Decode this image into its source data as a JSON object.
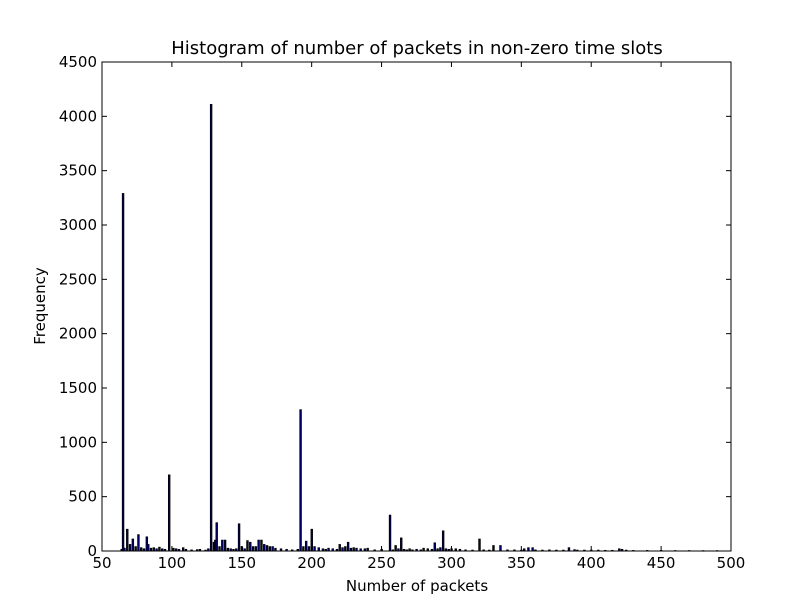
{
  "chart_data": {
    "type": "bar",
    "title": "Histogram of number of packets in non-zero time slots",
    "xlabel": "Number of packets",
    "ylabel": "Frequency",
    "xlim": [
      50,
      500
    ],
    "ylim": [
      0,
      4500
    ],
    "x_ticks": [
      "50",
      "100",
      "150",
      "200",
      "250",
      "300",
      "350",
      "400",
      "450",
      "500"
    ],
    "y_ticks": [
      "0",
      "500",
      "1000",
      "1500",
      "2000",
      "2500",
      "3000",
      "3500",
      "4000",
      "4500"
    ],
    "grid": false,
    "legend": "none",
    "bar_color": "#000080",
    "bar_edge_color": "#000000",
    "bin_width": 1,
    "x": [
      64,
      65,
      66,
      68,
      70,
      72,
      74,
      76,
      78,
      80,
      82,
      83,
      85,
      87,
      89,
      91,
      93,
      95,
      98,
      101,
      103,
      105,
      108,
      110,
      114,
      118,
      120,
      124,
      126,
      128,
      130,
      131,
      132,
      134,
      136,
      138,
      140,
      142,
      144,
      146,
      148,
      150,
      152,
      154,
      156,
      158,
      160,
      162,
      164,
      166,
      168,
      170,
      172,
      174,
      178,
      182,
      186,
      190,
      192,
      194,
      196,
      198,
      200,
      202,
      205,
      208,
      210,
      212,
      215,
      218,
      220,
      222,
      224,
      226,
      228,
      230,
      232,
      235,
      238,
      240,
      245,
      250,
      256,
      258,
      260,
      262,
      264,
      266,
      268,
      270,
      272,
      275,
      278,
      280,
      283,
      286,
      288,
      290,
      292,
      294,
      296,
      298,
      300,
      303,
      306,
      310,
      315,
      320,
      323,
      327,
      330,
      335,
      340,
      345,
      350,
      352,
      355,
      358,
      360,
      365,
      370,
      375,
      380,
      384,
      388,
      390,
      395,
      400,
      405,
      410,
      415,
      420,
      422,
      425,
      430,
      440,
      450,
      460,
      470,
      480,
      490
    ],
    "values": [
      15,
      3290,
      25,
      200,
      60,
      110,
      40,
      150,
      30,
      20,
      130,
      60,
      25,
      30,
      20,
      35,
      20,
      15,
      700,
      25,
      20,
      15,
      30,
      15,
      10,
      12,
      15,
      8,
      20,
      4110,
      80,
      100,
      260,
      40,
      100,
      100,
      25,
      20,
      15,
      20,
      250,
      40,
      20,
      95,
      80,
      40,
      40,
      100,
      100,
      60,
      50,
      40,
      40,
      25,
      20,
      15,
      10,
      15,
      1300,
      40,
      90,
      40,
      200,
      40,
      30,
      20,
      15,
      25,
      20,
      15,
      60,
      30,
      40,
      80,
      25,
      30,
      25,
      20,
      20,
      25,
      10,
      15,
      330,
      10,
      50,
      20,
      120,
      15,
      10,
      20,
      10,
      15,
      10,
      25,
      20,
      15,
      75,
      20,
      30,
      185,
      20,
      15,
      20,
      20,
      15,
      10,
      8,
      110,
      10,
      8,
      50,
      50,
      10,
      10,
      8,
      20,
      30,
      30,
      10,
      8,
      10,
      8,
      8,
      30,
      12,
      8,
      8,
      8,
      8,
      6,
      6,
      20,
      15,
      8,
      5,
      5,
      5,
      4,
      4,
      3,
      3
    ]
  }
}
